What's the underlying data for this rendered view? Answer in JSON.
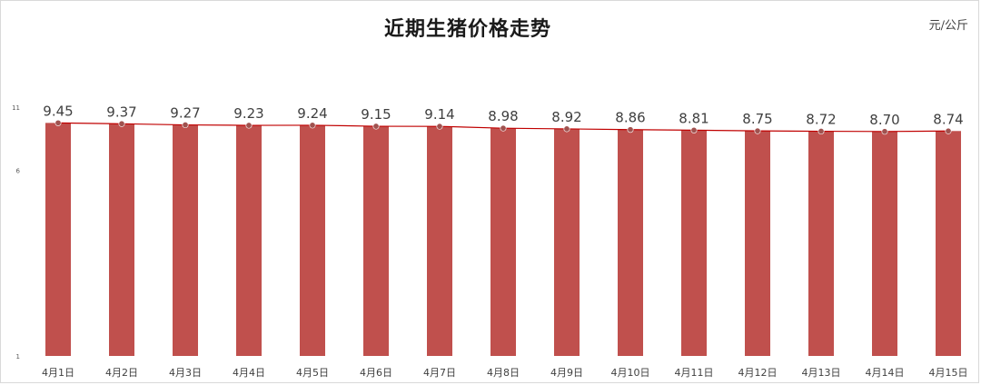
{
  "chart_data": {
    "type": "bar",
    "title": "近期生猪价格走势",
    "unit_label": "元/公斤",
    "categories": [
      "4月1日",
      "4月2日",
      "4月3日",
      "4月4日",
      "4月5日",
      "4月6日",
      "4月7日",
      "4月8日",
      "4月9日",
      "4月10日",
      "4月11日",
      "4月12日",
      "4月13日",
      "4月14日",
      "4月15日"
    ],
    "values": [
      9.45,
      9.37,
      9.27,
      9.23,
      9.24,
      9.15,
      9.14,
      8.98,
      8.92,
      8.86,
      8.81,
      8.75,
      8.72,
      8.7,
      8.74
    ],
    "value_labels": [
      "9.45",
      "9.37",
      "9.27",
      "9.23",
      "9.24",
      "9.15",
      "9.14",
      "8.98",
      "8.92",
      "8.86",
      "8.81",
      "8.75",
      "8.72",
      "8.70",
      "8.74"
    ],
    "overlay": "line",
    "y_scale": "log",
    "y_ticks": [
      "11",
      "6",
      "1"
    ],
    "ylim": [
      1,
      11
    ],
    "grid": false,
    "legend": "none",
    "colors": {
      "bar": "#c0504d",
      "line": "#c00000",
      "marker": "#a0524f"
    }
  }
}
